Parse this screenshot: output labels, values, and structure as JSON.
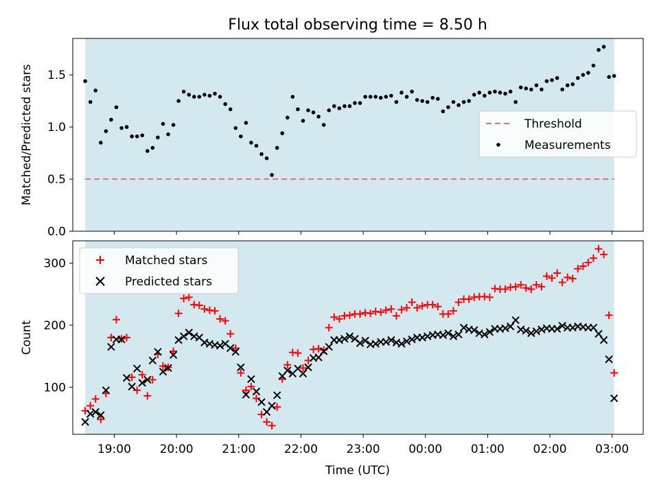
{
  "figure": {
    "title": "Flux total observing time = 8.50 h",
    "xlabel": "Time (UTC)"
  },
  "chart_data": [
    {
      "type": "scatter",
      "panel": "top",
      "ylabel": "Matched/Predicted stars",
      "xlim": [
        "18:20",
        "03:30"
      ],
      "ylim": [
        0,
        1.85
      ],
      "x_ticks": [
        "19:00",
        "20:00",
        "21:00",
        "22:00",
        "23:00",
        "00:00",
        "01:00",
        "02:00",
        "03:00"
      ],
      "y_ticks": [
        "0.0",
        "0.5",
        "1.0",
        "1.5"
      ],
      "observing_window": [
        "18:32",
        "03:02"
      ],
      "background_color": "#d3e9ef",
      "legend_position": "center right",
      "threshold": {
        "name": "Threshold",
        "value": 0.5,
        "color": "#f07070",
        "style": "dashed"
      },
      "series": [
        {
          "name": "Measurements",
          "marker": "dot",
          "color": "#000000",
          "x": [
            "18:32",
            "18:37",
            "18:42",
            "18:47",
            "18:52",
            "18:57",
            "19:02",
            "19:07",
            "19:12",
            "19:17",
            "19:22",
            "19:27",
            "19:32",
            "19:37",
            "19:42",
            "19:47",
            "19:52",
            "19:57",
            "20:02",
            "20:07",
            "20:12",
            "20:17",
            "20:22",
            "20:27",
            "20:32",
            "20:37",
            "20:42",
            "20:47",
            "20:52",
            "20:57",
            "21:02",
            "21:07",
            "21:12",
            "21:17",
            "21:22",
            "21:27",
            "21:32",
            "21:37",
            "21:42",
            "21:47",
            "21:52",
            "21:57",
            "22:02",
            "22:07",
            "22:12",
            "22:17",
            "22:22",
            "22:27",
            "22:32",
            "22:37",
            "22:42",
            "22:47",
            "22:52",
            "22:57",
            "23:02",
            "23:07",
            "23:12",
            "23:17",
            "23:22",
            "23:27",
            "23:32",
            "23:37",
            "23:42",
            "23:47",
            "23:52",
            "23:57",
            "00:02",
            "00:07",
            "00:12",
            "00:17",
            "00:22",
            "00:27",
            "00:32",
            "00:37",
            "00:42",
            "00:47",
            "00:52",
            "00:57",
            "01:02",
            "01:07",
            "01:12",
            "01:17",
            "01:22",
            "01:27",
            "01:32",
            "01:37",
            "01:42",
            "01:47",
            "01:52",
            "01:57",
            "02:02",
            "02:07",
            "02:12",
            "02:17",
            "02:22",
            "02:27",
            "02:32",
            "02:37",
            "02:42",
            "02:47",
            "02:52",
            "02:57",
            "03:02"
          ],
          "y": [
            1.44,
            1.24,
            1.35,
            0.85,
            0.96,
            1.07,
            1.19,
            0.99,
            1.0,
            0.91,
            0.91,
            0.92,
            0.77,
            0.8,
            0.9,
            1.03,
            0.93,
            1.02,
            1.25,
            1.34,
            1.31,
            1.29,
            1.29,
            1.31,
            1.3,
            1.32,
            1.29,
            1.22,
            1.17,
            0.99,
            0.91,
            1.04,
            0.85,
            0.82,
            0.74,
            0.7,
            0.54,
            0.8,
            0.94,
            1.09,
            1.29,
            1.17,
            1.06,
            1.16,
            1.14,
            1.1,
            1.02,
            1.16,
            1.2,
            1.18,
            1.2,
            1.2,
            1.23,
            1.23,
            1.29,
            1.29,
            1.29,
            1.28,
            1.29,
            1.3,
            1.24,
            1.33,
            1.29,
            1.34,
            1.26,
            1.25,
            1.24,
            1.28,
            1.27,
            1.15,
            1.19,
            1.24,
            1.21,
            1.24,
            1.25,
            1.31,
            1.33,
            1.3,
            1.33,
            1.34,
            1.33,
            1.32,
            1.34,
            1.24,
            1.38,
            1.37,
            1.36,
            1.4,
            1.36,
            1.44,
            1.45,
            1.47,
            1.36,
            1.4,
            1.41,
            1.47,
            1.5,
            1.52,
            1.59,
            1.74,
            1.77,
            1.48,
            1.49
          ]
        }
      ]
    },
    {
      "type": "scatter",
      "panel": "bottom",
      "ylabel": "Count",
      "xlabel": "Time (UTC)",
      "xlim": [
        "18:20",
        "03:30"
      ],
      "ylim": [
        24,
        336
      ],
      "x_ticks": [
        "19:00",
        "20:00",
        "21:00",
        "22:00",
        "23:00",
        "00:00",
        "01:00",
        "02:00",
        "03:00"
      ],
      "y_ticks": [
        "100",
        "200",
        "300"
      ],
      "observing_window": [
        "18:32",
        "03:02"
      ],
      "background_color": "#d3e9ef",
      "legend_position": "upper left",
      "series": [
        {
          "name": "Matched stars",
          "marker": "plus",
          "color": "#ff0000",
          "x": [
            "18:32",
            "18:37",
            "18:42",
            "18:47",
            "18:52",
            "18:57",
            "19:02",
            "19:07",
            "19:12",
            "19:17",
            "19:22",
            "19:27",
            "19:32",
            "19:37",
            "19:42",
            "19:47",
            "19:52",
            "19:57",
            "20:02",
            "20:07",
            "20:12",
            "20:17",
            "20:22",
            "20:27",
            "20:32",
            "20:37",
            "20:42",
            "20:47",
            "20:52",
            "20:57",
            "21:02",
            "21:07",
            "21:12",
            "21:17",
            "21:22",
            "21:27",
            "21:32",
            "21:37",
            "21:42",
            "21:47",
            "21:52",
            "21:57",
            "22:02",
            "22:07",
            "22:12",
            "22:17",
            "22:22",
            "22:27",
            "22:32",
            "22:37",
            "22:42",
            "22:47",
            "22:52",
            "22:57",
            "23:02",
            "23:07",
            "23:12",
            "23:17",
            "23:22",
            "23:27",
            "23:32",
            "23:37",
            "23:42",
            "23:47",
            "23:52",
            "23:57",
            "00:02",
            "00:07",
            "00:12",
            "00:17",
            "00:22",
            "00:27",
            "00:32",
            "00:37",
            "00:42",
            "00:47",
            "00:52",
            "00:57",
            "01:02",
            "01:07",
            "01:12",
            "01:17",
            "01:22",
            "01:27",
            "01:32",
            "01:37",
            "01:42",
            "01:47",
            "01:52",
            "01:57",
            "02:02",
            "02:07",
            "02:12",
            "02:17",
            "02:22",
            "02:27",
            "02:32",
            "02:37",
            "02:42",
            "02:47",
            "02:52",
            "02:57",
            "03:02"
          ],
          "y": [
            62,
            70,
            81,
            48,
            90,
            180,
            209,
            178,
            180,
            116,
            95,
            120,
            86,
            112,
            153,
            134,
            132,
            158,
            219,
            243,
            245,
            233,
            232,
            226,
            224,
            223,
            210,
            207,
            186,
            163,
            123,
            95,
            101,
            82,
            56,
            44,
            38,
            68,
            113,
            136,
            156,
            155,
            131,
            143,
            161,
            162,
            160,
            196,
            213,
            210,
            215,
            216,
            218,
            218,
            220,
            219,
            222,
            221,
            224,
            226,
            215,
            225,
            228,
            237,
            228,
            231,
            233,
            233,
            230,
            218,
            218,
            223,
            237,
            242,
            242,
            245,
            246,
            246,
            245,
            259,
            258,
            258,
            261,
            262,
            265,
            260,
            258,
            265,
            262,
            279,
            276,
            284,
            269,
            277,
            275,
            291,
            295,
            301,
            308,
            323,
            314,
            216,
            123
          ]
        },
        {
          "name": "Predicted stars",
          "marker": "x",
          "color": "#000000",
          "x": [
            "18:32",
            "18:37",
            "18:42",
            "18:47",
            "18:52",
            "18:57",
            "19:02",
            "19:07",
            "19:12",
            "19:17",
            "19:22",
            "19:27",
            "19:32",
            "19:37",
            "19:42",
            "19:47",
            "19:52",
            "19:57",
            "20:02",
            "20:07",
            "20:12",
            "20:17",
            "20:22",
            "20:27",
            "20:32",
            "20:37",
            "20:42",
            "20:47",
            "20:52",
            "20:57",
            "21:02",
            "21:07",
            "21:12",
            "21:17",
            "21:22",
            "21:27",
            "21:32",
            "21:37",
            "21:42",
            "21:47",
            "21:52",
            "21:57",
            "22:02",
            "22:07",
            "22:12",
            "22:17",
            "22:22",
            "22:27",
            "22:32",
            "22:37",
            "22:42",
            "22:47",
            "22:52",
            "22:57",
            "23:02",
            "23:07",
            "23:12",
            "23:17",
            "23:22",
            "23:27",
            "23:32",
            "23:37",
            "23:42",
            "23:47",
            "23:52",
            "23:57",
            "00:02",
            "00:07",
            "00:12",
            "00:17",
            "00:22",
            "00:27",
            "00:32",
            "00:37",
            "00:42",
            "00:47",
            "00:52",
            "00:57",
            "01:02",
            "01:07",
            "01:12",
            "01:17",
            "01:22",
            "01:27",
            "01:32",
            "01:37",
            "01:42",
            "01:47",
            "01:52",
            "01:57",
            "02:02",
            "02:07",
            "02:12",
            "02:17",
            "02:22",
            "02:27",
            "02:32",
            "02:37",
            "02:42",
            "02:47",
            "02:52",
            "02:57",
            "03:02"
          ],
          "y": [
            44,
            57,
            60,
            55,
            95,
            165,
            177,
            177,
            115,
            101,
            130,
            107,
            112,
            143,
            157,
            125,
            131,
            152,
            176,
            182,
            188,
            182,
            180,
            172,
            170,
            168,
            167,
            170,
            163,
            157,
            132,
            88,
            113,
            93,
            76,
            60,
            70,
            87,
            118,
            127,
            122,
            130,
            122,
            132,
            147,
            148,
            158,
            165,
            176,
            176,
            178,
            182,
            178,
            171,
            175,
            169,
            170,
            173,
            173,
            176,
            172,
            170,
            174,
            177,
            180,
            180,
            182,
            184,
            185,
            184,
            187,
            182,
            185,
            196,
            193,
            192,
            187,
            185,
            189,
            194,
            194,
            195,
            198,
            208,
            193,
            191,
            187,
            190,
            193,
            195,
            194,
            194,
            199,
            196,
            196,
            198,
            197,
            196,
            196,
            186,
            176,
            145,
            82
          ]
        }
      ]
    }
  ]
}
